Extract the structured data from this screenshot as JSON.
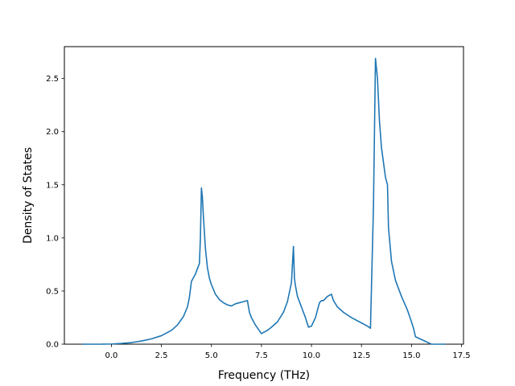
{
  "chart_data": {
    "type": "line",
    "title": "",
    "xlabel": "Frequency (THz)",
    "ylabel": "Density of States",
    "xlim": [
      -2.35,
      17.6
    ],
    "ylim": [
      0.0,
      2.8
    ],
    "grid": false,
    "legend": "none",
    "x_ticks": [
      0.0,
      2.5,
      5.0,
      7.5,
      10.0,
      12.5,
      15.0,
      17.5
    ],
    "x_tick_labels": [
      "0.0",
      "2.5",
      "5.0",
      "7.5",
      "10.0",
      "12.5",
      "15.0",
      "17.5"
    ],
    "y_ticks": [
      0.0,
      0.5,
      1.0,
      1.5,
      2.0,
      2.5
    ],
    "y_tick_labels": [
      "0.0",
      "0.5",
      "1.0",
      "1.5",
      "2.0",
      "2.5"
    ],
    "line_color": "#1f77b4",
    "series": [
      {
        "x": [
          -1.45,
          -0.5,
          0.0,
          0.5,
          1.0,
          1.5,
          2.0,
          2.5,
          3.0,
          3.3,
          3.6,
          3.8,
          3.9,
          4.0,
          4.2,
          4.4,
          4.45,
          4.5,
          4.55,
          4.6,
          4.7,
          4.8,
          4.9,
          5.0,
          5.2,
          5.4,
          5.6,
          5.8,
          6.0,
          6.2,
          6.4,
          6.6,
          6.8,
          6.9,
          7.0,
          7.2,
          7.5,
          7.8,
          8.0,
          8.3,
          8.6,
          8.8,
          9.0,
          9.05,
          9.1,
          9.15,
          9.2,
          9.3,
          9.5,
          9.7,
          9.85,
          10.0,
          10.2,
          10.4,
          10.5,
          10.6,
          10.8,
          11.0,
          11.1,
          11.3,
          11.6,
          12.0,
          12.4,
          12.8,
          12.95,
          13.1,
          13.2,
          13.3,
          13.4,
          13.5,
          13.7,
          13.8,
          13.85,
          14.0,
          14.2,
          14.5,
          14.8,
          15.0,
          15.1,
          15.2,
          16.0,
          16.7
        ],
        "y": [
          0.0,
          0.0,
          0.002,
          0.007,
          0.015,
          0.03,
          0.05,
          0.08,
          0.13,
          0.18,
          0.26,
          0.35,
          0.44,
          0.59,
          0.66,
          0.76,
          1.0,
          1.47,
          1.38,
          1.2,
          0.9,
          0.72,
          0.62,
          0.56,
          0.47,
          0.42,
          0.39,
          0.37,
          0.36,
          0.38,
          0.39,
          0.4,
          0.41,
          0.3,
          0.25,
          0.18,
          0.1,
          0.13,
          0.16,
          0.21,
          0.3,
          0.4,
          0.58,
          0.75,
          0.92,
          0.62,
          0.55,
          0.45,
          0.35,
          0.25,
          0.16,
          0.17,
          0.25,
          0.39,
          0.41,
          0.41,
          0.45,
          0.47,
          0.41,
          0.35,
          0.3,
          0.25,
          0.21,
          0.17,
          0.15,
          1.3,
          2.69,
          2.5,
          2.1,
          1.85,
          1.57,
          1.5,
          1.1,
          0.78,
          0.6,
          0.45,
          0.32,
          0.21,
          0.15,
          0.07,
          0.0,
          0.0
        ]
      }
    ]
  }
}
